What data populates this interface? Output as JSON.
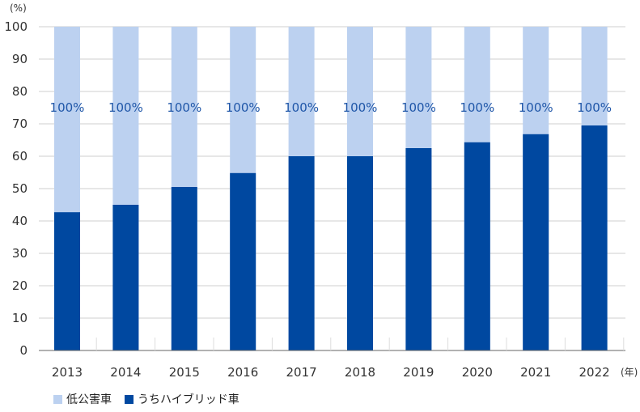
{
  "chart_data": {
    "type": "bar",
    "stacked": true,
    "y_unit": "(%)",
    "x_unit": "(年)",
    "ylim": [
      0,
      100
    ],
    "yticks": [
      0,
      10,
      20,
      30,
      40,
      50,
      60,
      70,
      80,
      90,
      100
    ],
    "grid": true,
    "legend_position": "bottom-left",
    "categories": [
      "2013",
      "2014",
      "2015",
      "2016",
      "2017",
      "2018",
      "2019",
      "2020",
      "2021",
      "2022"
    ],
    "series": [
      {
        "name": "低公害車",
        "color": "#bcd1f0",
        "total": [
          100,
          100,
          100,
          100,
          100,
          100,
          100,
          100,
          100,
          100
        ]
      },
      {
        "name": "うちハイブリッド車",
        "color": "#0048a0",
        "values": [
          42.7,
          45.0,
          50.5,
          54.8,
          60.0,
          60.0,
          62.5,
          64.3,
          66.8,
          69.5
        ]
      }
    ],
    "data_labels": [
      "100%",
      "100%",
      "100%",
      "100%",
      "100%",
      "100%",
      "100%",
      "100%",
      "100%",
      "100%"
    ]
  }
}
